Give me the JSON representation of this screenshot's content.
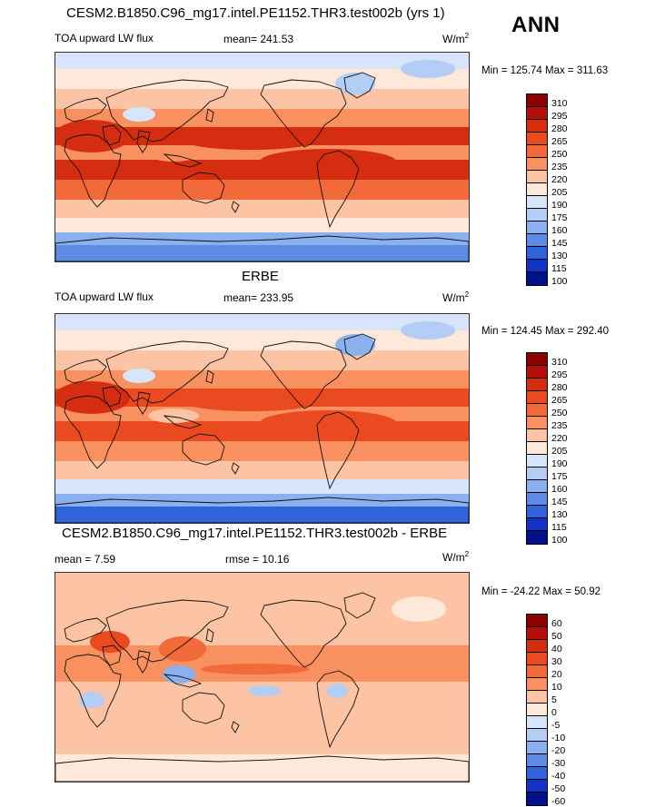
{
  "season": "ANN",
  "units": {
    "base": "W/m",
    "exp": "2"
  },
  "panels": [
    {
      "title": "CESM2.B1850.C96_mg17.intel.PE1152.THR3.test002b (yrs 1)",
      "left_label": "TOA upward LW flux",
      "mid_label": "mean= 241.53",
      "minmax": "Min = 125.74 Max = 311.63"
    },
    {
      "title": "ERBE",
      "left_label": "TOA upward LW flux",
      "mid_label": "mean= 233.95",
      "minmax": "Min = 124.45 Max = 292.40"
    },
    {
      "title": "CESM2.B1850.C96_mg17.intel.PE1152.THR3.test002b - ERBE",
      "left_label": "mean =   7.59",
      "mid_label": "rmse =  10.16",
      "minmax": "Min = -24.22 Max =  50.92"
    }
  ],
  "chart_data": [
    {
      "type": "heatmap",
      "title": "CESM2.B1850.C96_mg17.intel.PE1152.THR3.test002b (yrs 1)",
      "variable": "TOA upward LW flux",
      "units": "W/m2",
      "mean": 241.53,
      "min": 125.74,
      "max": 311.63,
      "colorbar_levels": [
        310,
        295,
        280,
        265,
        250,
        235,
        220,
        205,
        190,
        175,
        160,
        145,
        130,
        115,
        100
      ],
      "colorbar_colors": [
        "#8b0000",
        "#b40f0a",
        "#d52d10",
        "#e94a20",
        "#f26a3a",
        "#f9905f",
        "#fcc3a5",
        "#fde8da",
        "#d6e5fa",
        "#b3cdf5",
        "#8bb0ee",
        "#5e8be4",
        "#2f63d9",
        "#1134c4",
        "#000f8a"
      ],
      "region_values": {
        "tropics_clear": 285,
        "itcz": 245,
        "midlat": 225,
        "highlat": 195,
        "antarctica": 145,
        "tibet": 200,
        "sahara": 290
      }
    },
    {
      "type": "heatmap",
      "title": "ERBE",
      "variable": "TOA upward LW flux",
      "units": "W/m2",
      "mean": 233.95,
      "min": 124.45,
      "max": 292.4,
      "colorbar_levels": [
        310,
        295,
        280,
        265,
        250,
        235,
        220,
        205,
        190,
        175,
        160,
        145,
        130,
        115,
        100
      ],
      "colorbar_colors": [
        "#8b0000",
        "#b40f0a",
        "#d52d10",
        "#e94a20",
        "#f26a3a",
        "#f9905f",
        "#fcc3a5",
        "#fde8da",
        "#d6e5fa",
        "#b3cdf5",
        "#8bb0ee",
        "#5e8be4",
        "#2f63d9",
        "#1134c4",
        "#000f8a"
      ],
      "region_values": {
        "tropics_clear": 275,
        "itcz": 235,
        "midlat": 220,
        "highlat": 190,
        "antarctica": 140,
        "tibet": 195,
        "sahara": 280
      }
    },
    {
      "type": "heatmap",
      "title": "CESM2.B1850.C96_mg17.intel.PE1152.THR3.test002b - ERBE",
      "variable": "difference",
      "units": "W/m2",
      "mean": 7.59,
      "rmse": 10.16,
      "min": -24.22,
      "max": 50.92,
      "colorbar_levels": [
        60,
        50,
        40,
        30,
        20,
        10,
        5,
        0,
        -5,
        -10,
        -20,
        -30,
        -40,
        -50,
        -60
      ],
      "colorbar_colors": [
        "#8b0000",
        "#b40f0a",
        "#d52d10",
        "#e94a20",
        "#f26a3a",
        "#f9905f",
        "#fcc3a5",
        "#fde8da",
        "#d6e5fa",
        "#b3cdf5",
        "#8bb0ee",
        "#5e8be4",
        "#2f63d9",
        "#1134c4",
        "#000f8a"
      ],
      "region_values": {
        "background": 7,
        "arabia": 35,
        "indonesia": -15,
        "tropical_pacific": 20
      }
    }
  ]
}
